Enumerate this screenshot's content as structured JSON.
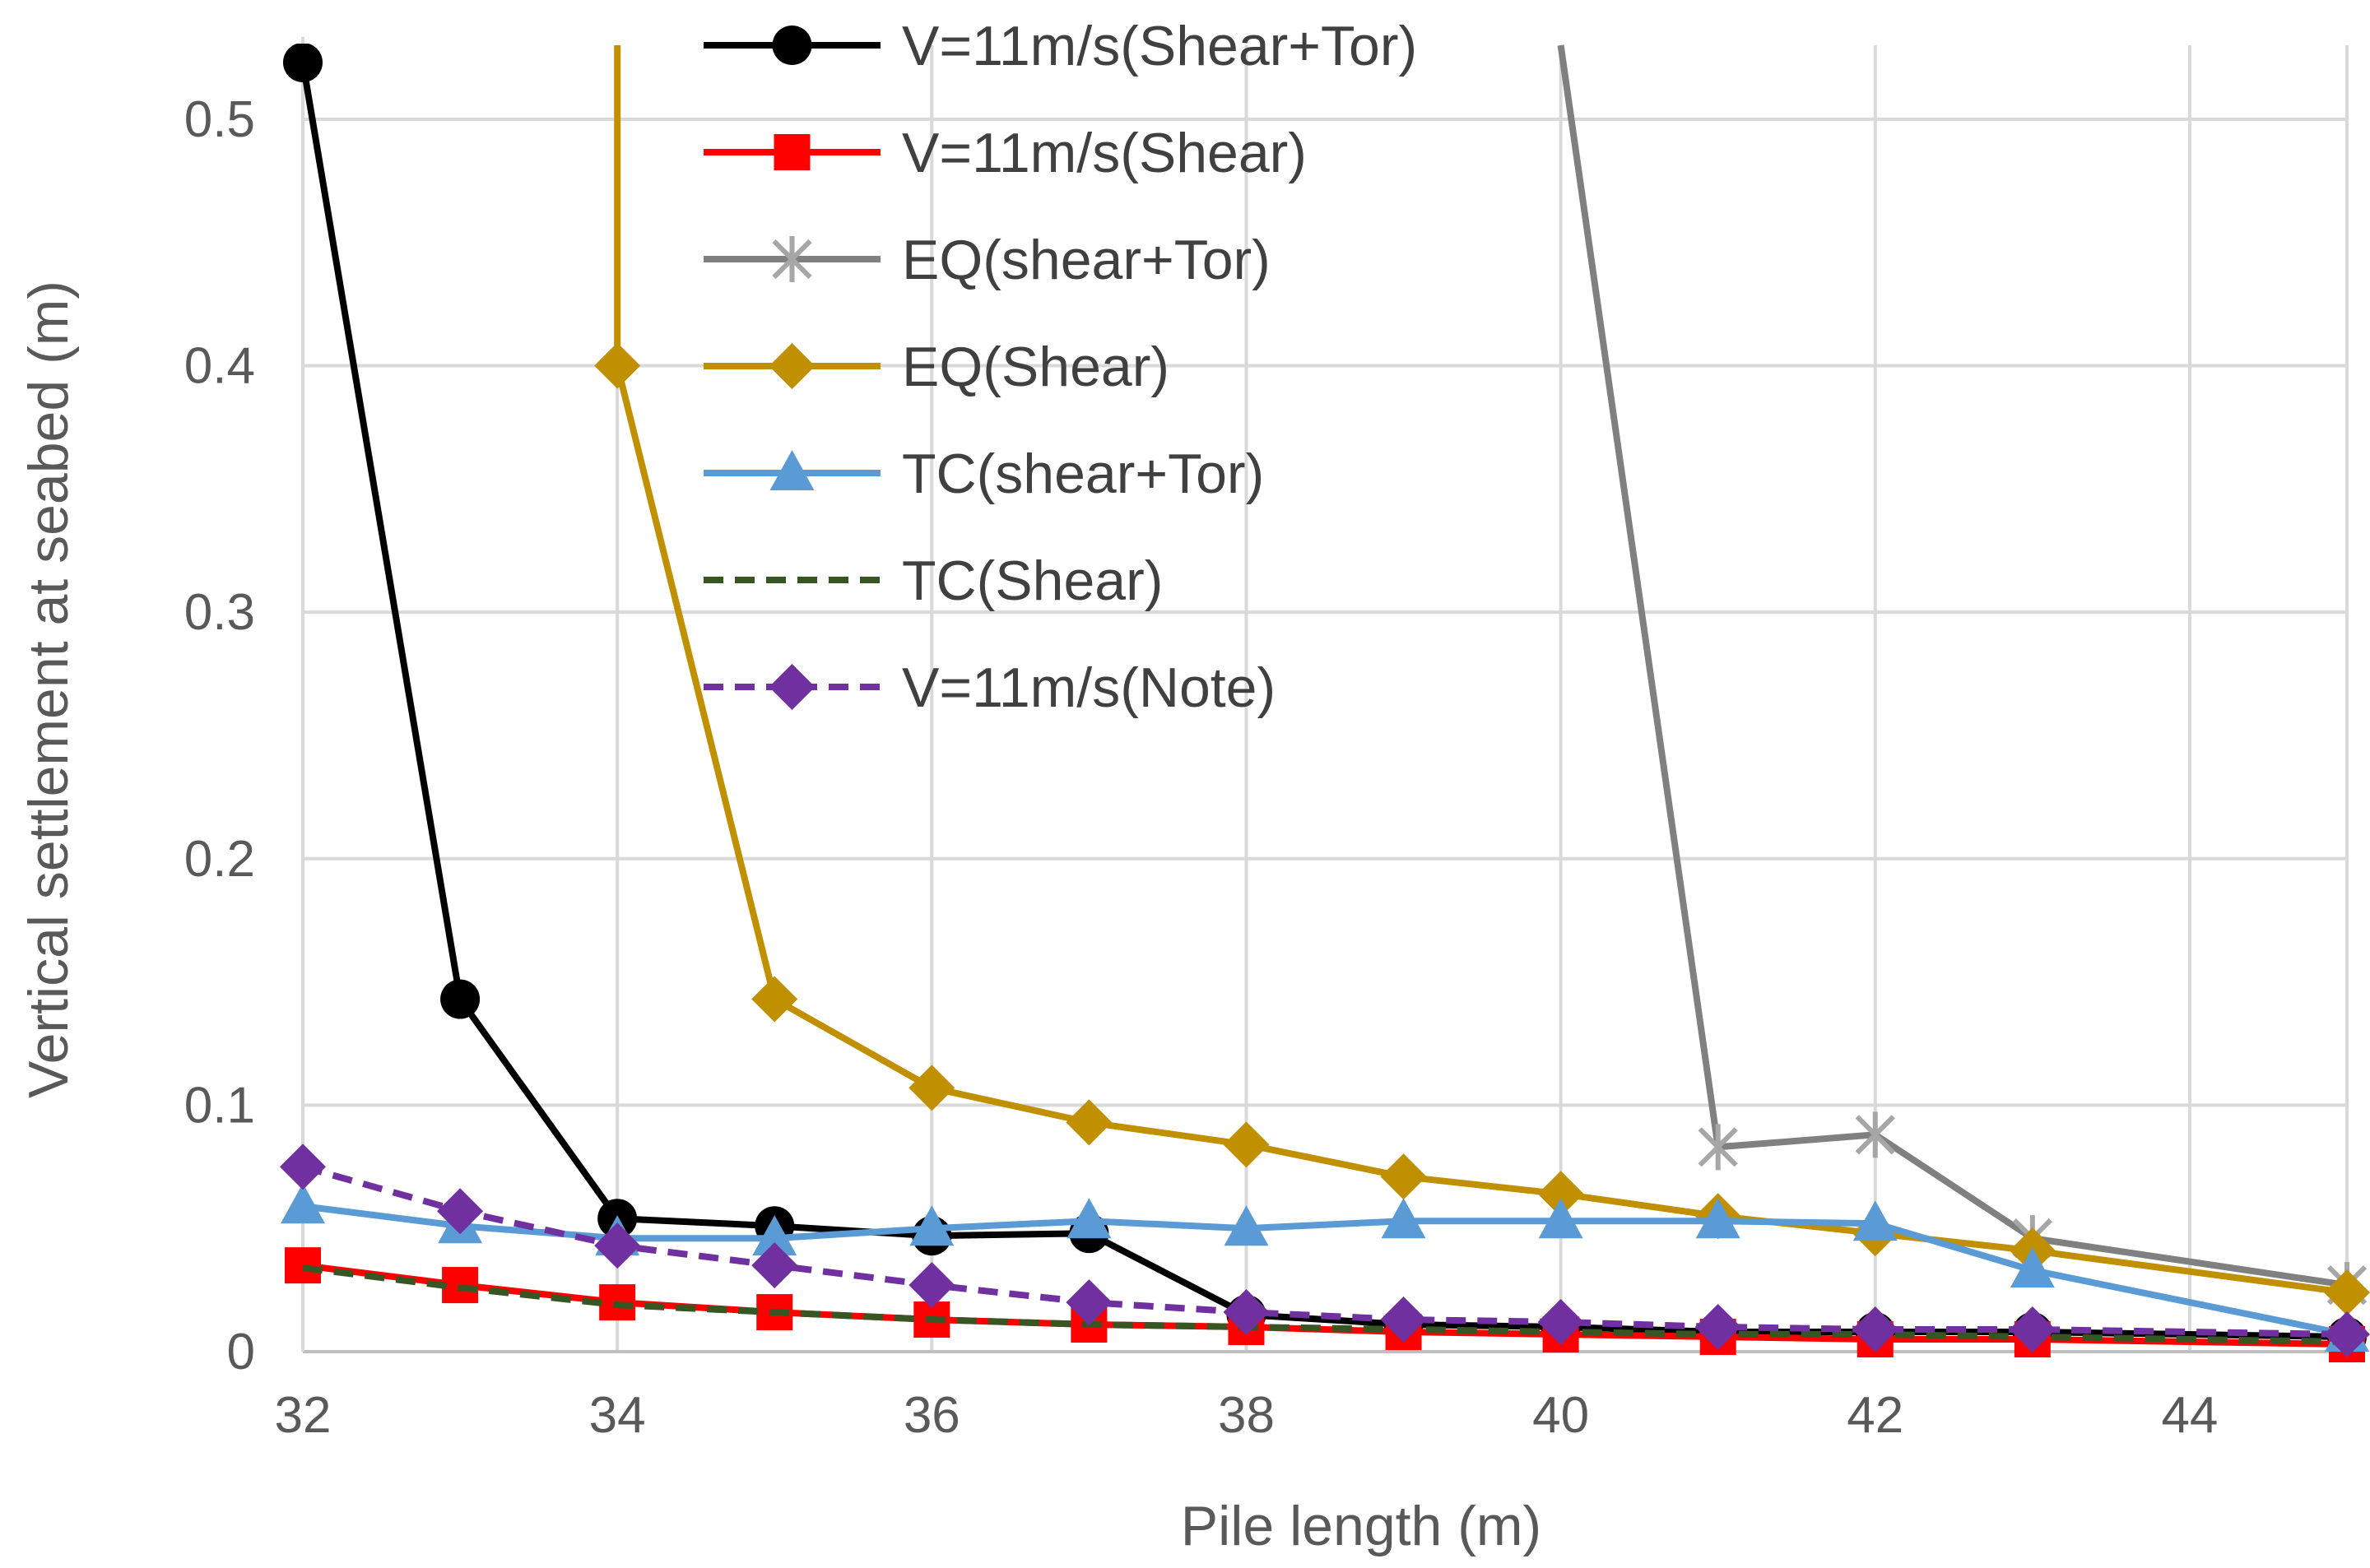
{
  "chart_data": {
    "type": "line",
    "title": "",
    "xlabel": "Pile length (m)",
    "ylabel": "Vertical settlement at seabed (m)",
    "xlim": [
      32,
      45
    ],
    "ylim": [
      0,
      0.53
    ],
    "xticks": [
      32,
      34,
      36,
      38,
      40,
      42,
      44
    ],
    "yticks": [
      0,
      0.1,
      0.2,
      0.3,
      0.4,
      0.5
    ],
    "xtick_labels": [
      "32",
      "34",
      "36",
      "38",
      "40",
      "42",
      "44"
    ],
    "ytick_labels": [
      "0",
      "0.1",
      "0.2",
      "0.3",
      "0.4",
      "0.5"
    ],
    "grid": true,
    "legend_position": "top-center",
    "series": [
      {
        "name": "V=11m/s(Shear+Tor)",
        "color": "#000000",
        "marker": "circle",
        "dash": "solid",
        "x": [
          32,
          33,
          34,
          35,
          36,
          37,
          38,
          39,
          40,
          41,
          42,
          43,
          45
        ],
        "y": [
          0.523,
          0.143,
          0.054,
          0.051,
          0.047,
          0.048,
          0.015,
          0.011,
          0.01,
          0.008,
          0.008,
          0.008,
          0.006
        ]
      },
      {
        "name": "V=11m/s(Shear)",
        "color": "#ff0000",
        "marker": "square",
        "dash": "solid",
        "x": [
          32,
          33,
          34,
          35,
          36,
          37,
          38,
          39,
          40,
          41,
          42,
          43,
          45
        ],
        "y": [
          0.035,
          0.027,
          0.02,
          0.016,
          0.013,
          0.011,
          0.01,
          0.008,
          0.007,
          0.006,
          0.005,
          0.005,
          0.003
        ]
      },
      {
        "name": "EQ(shear+Tor)",
        "color": "#808080",
        "marker": "star",
        "dash": "solid",
        "x": [
          40,
          41,
          42,
          43,
          45
        ],
        "y": [
          0.53,
          0.083,
          0.088,
          0.046,
          0.027
        ]
      },
      {
        "name": "EQ(Shear)",
        "color": "#c09000",
        "marker": "diamond",
        "dash": "solid",
        "x": [
          34,
          34,
          35,
          36,
          37,
          38,
          39,
          40,
          41,
          42,
          43,
          45
        ],
        "y": [
          0.53,
          0.4,
          0.143,
          0.107,
          0.093,
          0.084,
          0.071,
          0.064,
          0.055,
          0.048,
          0.041,
          0.024
        ]
      },
      {
        "name": "TC(shear+Tor)",
        "color": "#5b9bd5",
        "marker": "triangle",
        "dash": "solid",
        "x": [
          32,
          33,
          34,
          35,
          36,
          37,
          38,
          39,
          40,
          41,
          42,
          43,
          45
        ],
        "y": [
          0.059,
          0.051,
          0.046,
          0.046,
          0.05,
          0.053,
          0.05,
          0.053,
          0.053,
          0.053,
          0.052,
          0.033,
          0.007
        ]
      },
      {
        "name": "TC(Shear)",
        "color": "#375623",
        "marker": "none",
        "dash": "dashed",
        "x": [
          32,
          33,
          34,
          35,
          36,
          37,
          38,
          39,
          40,
          41,
          42,
          43,
          45
        ],
        "y": [
          0.034,
          0.026,
          0.019,
          0.016,
          0.013,
          0.011,
          0.01,
          0.009,
          0.008,
          0.007,
          0.007,
          0.006,
          0.004
        ]
      },
      {
        "name": "V=11m/s(Note)",
        "color": "#7030a0",
        "marker": "diamond",
        "dash": "dashed",
        "x": [
          32,
          33,
          34,
          35,
          36,
          37,
          38,
          39,
          40,
          41,
          42,
          43,
          45
        ],
        "y": [
          0.075,
          0.057,
          0.043,
          0.035,
          0.027,
          0.02,
          0.016,
          0.013,
          0.012,
          0.01,
          0.009,
          0.009,
          0.007
        ]
      }
    ]
  }
}
